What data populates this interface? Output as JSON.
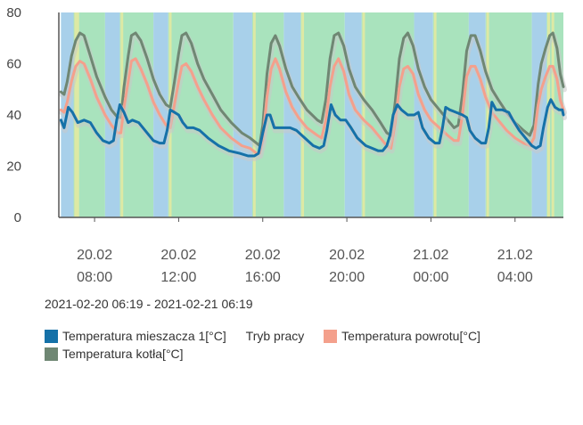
{
  "chart_data": {
    "type": "line",
    "title": "",
    "ylim": [
      0,
      80
    ],
    "y_ticks": [
      "0",
      "20",
      "40",
      "60",
      "80"
    ],
    "x_range_hours": [
      6.3,
      30.3
    ],
    "x_ticks": [
      {
        "hour": 8,
        "date": "20.02",
        "time": "08:00"
      },
      {
        "hour": 12,
        "date": "20.02",
        "time": "12:00"
      },
      {
        "hour": 16,
        "date": "20.02",
        "time": "16:00"
      },
      {
        "hour": 20,
        "date": "20.02",
        "time": "20:00"
      },
      {
        "hour": 24,
        "date": "21.02",
        "time": "00:00"
      },
      {
        "hour": 28,
        "date": "21.02",
        "time": "04:00"
      }
    ],
    "mode_bands": [
      {
        "start": 6.4,
        "end": 7.0,
        "mode": "blue"
      },
      {
        "start": 7.0,
        "end": 8.5,
        "mode": "green"
      },
      {
        "start": 8.5,
        "end": 9.2,
        "mode": "blue"
      },
      {
        "start": 9.2,
        "end": 10.8,
        "mode": "green"
      },
      {
        "start": 10.8,
        "end": 11.5,
        "mode": "blue"
      },
      {
        "start": 11.5,
        "end": 14.6,
        "mode": "green"
      },
      {
        "start": 14.6,
        "end": 15.5,
        "mode": "blue"
      },
      {
        "start": 15.5,
        "end": 17.0,
        "mode": "green"
      },
      {
        "start": 17.0,
        "end": 17.8,
        "mode": "blue"
      },
      {
        "start": 17.8,
        "end": 19.9,
        "mode": "green"
      },
      {
        "start": 19.9,
        "end": 20.7,
        "mode": "blue"
      },
      {
        "start": 20.7,
        "end": 23.2,
        "mode": "green"
      },
      {
        "start": 23.2,
        "end": 24.1,
        "mode": "blue"
      },
      {
        "start": 24.1,
        "end": 25.8,
        "mode": "green"
      },
      {
        "start": 25.8,
        "end": 26.6,
        "mode": "blue"
      },
      {
        "start": 26.6,
        "end": 28.8,
        "mode": "green"
      },
      {
        "start": 28.8,
        "end": 29.5,
        "mode": "blue"
      },
      {
        "start": 29.5,
        "end": 30.3,
        "mode": "green"
      }
    ],
    "yellow_marks": [
      7.1,
      7.2,
      9.3,
      11.6,
      15.6,
      17.9,
      20.8,
      24.2,
      26.7,
      29.6,
      29.8
    ],
    "series": [
      {
        "name": "Temperatura kotła[°C]",
        "color": "#6f8773",
        "points": [
          [
            6.4,
            49
          ],
          [
            6.55,
            48
          ],
          [
            6.7,
            53
          ],
          [
            6.9,
            63
          ],
          [
            7.1,
            69
          ],
          [
            7.3,
            72
          ],
          [
            7.5,
            71
          ],
          [
            7.8,
            63
          ],
          [
            8.1,
            55
          ],
          [
            8.5,
            47
          ],
          [
            8.8,
            42
          ],
          [
            9.1,
            39
          ],
          [
            9.25,
            39
          ],
          [
            9.4,
            51
          ],
          [
            9.6,
            63
          ],
          [
            9.75,
            71
          ],
          [
            9.95,
            72
          ],
          [
            10.2,
            69
          ],
          [
            10.5,
            62
          ],
          [
            10.8,
            54
          ],
          [
            11.1,
            48
          ],
          [
            11.4,
            44
          ],
          [
            11.6,
            43
          ],
          [
            11.8,
            53
          ],
          [
            12.0,
            64
          ],
          [
            12.15,
            71
          ],
          [
            12.35,
            72
          ],
          [
            12.6,
            68
          ],
          [
            12.9,
            60
          ],
          [
            13.2,
            54
          ],
          [
            13.6,
            48
          ],
          [
            14.0,
            42
          ],
          [
            14.5,
            37
          ],
          [
            15.0,
            33
          ],
          [
            15.4,
            31
          ],
          [
            15.7,
            29
          ],
          [
            15.85,
            28
          ],
          [
            16.0,
            36
          ],
          [
            16.2,
            56
          ],
          [
            16.4,
            68
          ],
          [
            16.6,
            71
          ],
          [
            16.8,
            67
          ],
          [
            17.1,
            58
          ],
          [
            17.4,
            51
          ],
          [
            17.7,
            47
          ],
          [
            18.1,
            42
          ],
          [
            18.6,
            38
          ],
          [
            18.8,
            37
          ],
          [
            19.0,
            46
          ],
          [
            19.2,
            62
          ],
          [
            19.4,
            71
          ],
          [
            19.6,
            72
          ],
          [
            19.85,
            67
          ],
          [
            20.1,
            58
          ],
          [
            20.4,
            51
          ],
          [
            20.8,
            46
          ],
          [
            21.2,
            42
          ],
          [
            21.6,
            37
          ],
          [
            21.9,
            33
          ],
          [
            22.1,
            32
          ],
          [
            22.3,
            45
          ],
          [
            22.5,
            62
          ],
          [
            22.7,
            70
          ],
          [
            22.9,
            72
          ],
          [
            23.15,
            67
          ],
          [
            23.4,
            58
          ],
          [
            23.7,
            51
          ],
          [
            24.0,
            46
          ],
          [
            24.4,
            42
          ],
          [
            24.8,
            38
          ],
          [
            25.1,
            35
          ],
          [
            25.3,
            36
          ],
          [
            25.5,
            48
          ],
          [
            25.7,
            65
          ],
          [
            25.9,
            71
          ],
          [
            26.1,
            71
          ],
          [
            26.35,
            65
          ],
          [
            26.6,
            57
          ],
          [
            26.9,
            50
          ],
          [
            27.2,
            46
          ],
          [
            27.6,
            41
          ],
          [
            28.0,
            37
          ],
          [
            28.4,
            34
          ],
          [
            28.7,
            32
          ],
          [
            28.9,
            36
          ],
          [
            29.1,
            52
          ],
          [
            29.25,
            60
          ],
          [
            29.45,
            66
          ],
          [
            29.65,
            71
          ],
          [
            29.8,
            72
          ],
          [
            30.0,
            66
          ],
          [
            30.15,
            56
          ],
          [
            30.3,
            51
          ]
        ]
      },
      {
        "name": "Temperatura powrotu[°C]",
        "color": "#f4a08c",
        "points": [
          [
            6.4,
            42
          ],
          [
            6.55,
            41
          ],
          [
            6.7,
            45
          ],
          [
            6.9,
            53
          ],
          [
            7.1,
            59
          ],
          [
            7.3,
            61
          ],
          [
            7.5,
            60
          ],
          [
            7.8,
            54
          ],
          [
            8.1,
            47
          ],
          [
            8.5,
            40
          ],
          [
            8.8,
            36
          ],
          [
            9.1,
            33
          ],
          [
            9.25,
            33
          ],
          [
            9.4,
            43
          ],
          [
            9.6,
            53
          ],
          [
            9.75,
            61
          ],
          [
            9.95,
            62
          ],
          [
            10.2,
            58
          ],
          [
            10.5,
            52
          ],
          [
            10.8,
            45
          ],
          [
            11.1,
            40
          ],
          [
            11.4,
            36
          ],
          [
            11.6,
            35
          ],
          [
            11.8,
            44
          ],
          [
            12.0,
            53
          ],
          [
            12.15,
            59
          ],
          [
            12.35,
            60
          ],
          [
            12.6,
            57
          ],
          [
            12.9,
            51
          ],
          [
            13.2,
            46
          ],
          [
            13.6,
            40
          ],
          [
            14.0,
            35
          ],
          [
            14.5,
            31
          ],
          [
            15.0,
            28
          ],
          [
            15.4,
            27
          ],
          [
            15.7,
            25
          ],
          [
            15.85,
            25
          ],
          [
            16.0,
            30
          ],
          [
            16.2,
            47
          ],
          [
            16.4,
            58
          ],
          [
            16.6,
            62
          ],
          [
            16.8,
            58
          ],
          [
            17.1,
            49
          ],
          [
            17.4,
            43
          ],
          [
            17.7,
            39
          ],
          [
            18.1,
            35
          ],
          [
            18.6,
            32
          ],
          [
            18.8,
            31
          ],
          [
            19.0,
            38
          ],
          [
            19.2,
            51
          ],
          [
            19.4,
            59
          ],
          [
            19.6,
            62
          ],
          [
            19.85,
            57
          ],
          [
            20.1,
            48
          ],
          [
            20.4,
            42
          ],
          [
            20.8,
            38
          ],
          [
            21.2,
            35
          ],
          [
            21.6,
            31
          ],
          [
            21.9,
            28
          ],
          [
            22.1,
            27
          ],
          [
            22.3,
            37
          ],
          [
            22.5,
            51
          ],
          [
            22.7,
            58
          ],
          [
            22.9,
            59
          ],
          [
            23.15,
            56
          ],
          [
            23.4,
            48
          ],
          [
            23.7,
            42
          ],
          [
            24.0,
            38
          ],
          [
            24.4,
            35
          ],
          [
            24.8,
            32
          ],
          [
            25.1,
            30
          ],
          [
            25.3,
            30
          ],
          [
            25.5,
            40
          ],
          [
            25.7,
            55
          ],
          [
            25.9,
            59
          ],
          [
            26.1,
            59
          ],
          [
            26.35,
            54
          ],
          [
            26.6,
            47
          ],
          [
            26.9,
            41
          ],
          [
            27.2,
            38
          ],
          [
            27.6,
            34
          ],
          [
            28.0,
            31
          ],
          [
            28.4,
            29
          ],
          [
            28.7,
            28
          ],
          [
            28.9,
            31
          ],
          [
            29.1,
            44
          ],
          [
            29.25,
            50
          ],
          [
            29.45,
            55
          ],
          [
            29.65,
            59
          ],
          [
            29.8,
            59
          ],
          [
            30.0,
            54
          ],
          [
            30.15,
            46
          ],
          [
            30.3,
            42
          ]
        ]
      },
      {
        "name": "Temperatura mieszacza 1[°C]",
        "color": "#1571a8",
        "points": [
          [
            6.4,
            38
          ],
          [
            6.55,
            35
          ],
          [
            6.75,
            43
          ],
          [
            6.95,
            41
          ],
          [
            7.2,
            37
          ],
          [
            7.5,
            38
          ],
          [
            7.8,
            37
          ],
          [
            8.1,
            33
          ],
          [
            8.4,
            30
          ],
          [
            8.7,
            29
          ],
          [
            8.9,
            30
          ],
          [
            9.05,
            38
          ],
          [
            9.2,
            44
          ],
          [
            9.4,
            41
          ],
          [
            9.6,
            37
          ],
          [
            9.8,
            38
          ],
          [
            10.1,
            37
          ],
          [
            10.4,
            34
          ],
          [
            10.8,
            30
          ],
          [
            11.1,
            29
          ],
          [
            11.3,
            29
          ],
          [
            11.45,
            34
          ],
          [
            11.6,
            42
          ],
          [
            11.8,
            41
          ],
          [
            12.0,
            40
          ],
          [
            12.2,
            37
          ],
          [
            12.4,
            35
          ],
          [
            12.7,
            35
          ],
          [
            13.0,
            34
          ],
          [
            13.4,
            31
          ],
          [
            13.9,
            28
          ],
          [
            14.4,
            26
          ],
          [
            14.9,
            25
          ],
          [
            15.3,
            24
          ],
          [
            15.6,
            24
          ],
          [
            15.8,
            25
          ],
          [
            16.0,
            33
          ],
          [
            16.2,
            40
          ],
          [
            16.35,
            40
          ],
          [
            16.55,
            35
          ],
          [
            16.9,
            35
          ],
          [
            17.3,
            35
          ],
          [
            17.6,
            34
          ],
          [
            18.0,
            31
          ],
          [
            18.4,
            28
          ],
          [
            18.7,
            27
          ],
          [
            18.9,
            28
          ],
          [
            19.05,
            34
          ],
          [
            19.25,
            44
          ],
          [
            19.45,
            40
          ],
          [
            19.7,
            38
          ],
          [
            19.95,
            38
          ],
          [
            20.2,
            35
          ],
          [
            20.5,
            31
          ],
          [
            20.9,
            28
          ],
          [
            21.2,
            27
          ],
          [
            21.5,
            26
          ],
          [
            21.7,
            26
          ],
          [
            21.9,
            28
          ],
          [
            22.05,
            32
          ],
          [
            22.2,
            40
          ],
          [
            22.4,
            44
          ],
          [
            22.6,
            42
          ],
          [
            22.9,
            40
          ],
          [
            23.2,
            40
          ],
          [
            23.4,
            41
          ],
          [
            23.6,
            35
          ],
          [
            23.9,
            31
          ],
          [
            24.2,
            29
          ],
          [
            24.4,
            29
          ],
          [
            24.55,
            35
          ],
          [
            24.7,
            43
          ],
          [
            24.9,
            42
          ],
          [
            25.2,
            41
          ],
          [
            25.5,
            40
          ],
          [
            25.7,
            39
          ],
          [
            25.85,
            34
          ],
          [
            26.1,
            31
          ],
          [
            26.4,
            29
          ],
          [
            26.6,
            29
          ],
          [
            26.75,
            35
          ],
          [
            26.9,
            45
          ],
          [
            27.1,
            42
          ],
          [
            27.4,
            42
          ],
          [
            27.7,
            41
          ],
          [
            27.9,
            38
          ],
          [
            28.2,
            34
          ],
          [
            28.5,
            31
          ],
          [
            28.8,
            28
          ],
          [
            29.0,
            27
          ],
          [
            29.2,
            28
          ],
          [
            29.35,
            35
          ],
          [
            29.55,
            43
          ],
          [
            29.7,
            46
          ],
          [
            29.9,
            43
          ],
          [
            30.1,
            42
          ],
          [
            30.25,
            42
          ],
          [
            30.3,
            40
          ]
        ]
      }
    ],
    "legend": [
      {
        "label": "Temperatura mieszacza 1[°C]",
        "color": "#1571a8"
      },
      {
        "label": "Tryb pracy",
        "color": ""
      },
      {
        "label": "Temperatura powrotu[°C]",
        "color": "#f4a08c"
      },
      {
        "label": "Temperatura kotła[°C]",
        "color": "#6f8773"
      }
    ],
    "range_label": "2021-02-20 06:19 - 2021-02-21 06:19"
  },
  "colors": {
    "band_green": "#a9e3bd",
    "band_blue": "#a8d0ea",
    "band_yellow": "#dde9a4",
    "axis": "#555555",
    "shadow": "#c9c9c9"
  }
}
